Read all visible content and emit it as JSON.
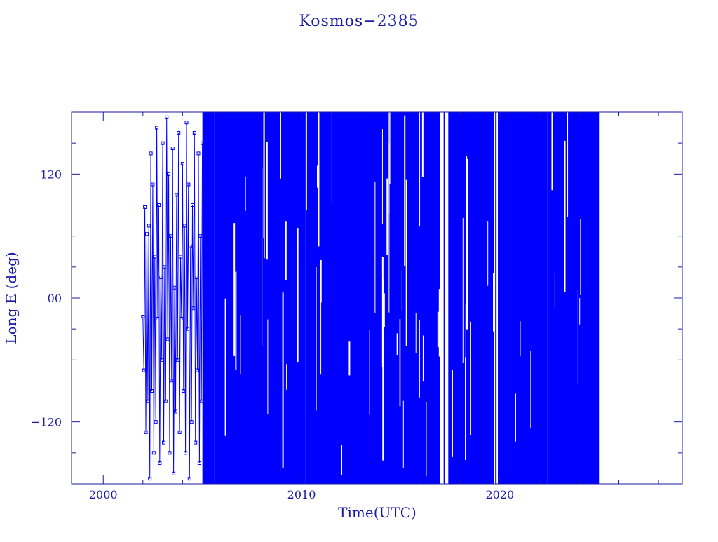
{
  "chart_data": {
    "type": "line",
    "title": "Kosmos−2385",
    "xlabel": "Time(UTC)",
    "ylabel": "Long E (deg)",
    "xlim": [
      1998.4,
      2029.2
    ],
    "ylim": [
      -180,
      180
    ],
    "x_ticks": [
      {
        "value": 2000,
        "label": "2000"
      },
      {
        "value": 2010,
        "label": "2010"
      },
      {
        "value": 2020,
        "label": "2020"
      }
    ],
    "y_ticks": [
      {
        "value": -120,
        "label": "−120"
      },
      {
        "value": 0,
        "label": "00"
      },
      {
        "value": 120,
        "label": "120"
      }
    ],
    "x_minor_step": 2,
    "y_minor_step": 30,
    "grid": false,
    "color": "#0000ff",
    "axis_color": "#1a1aa6",
    "early_series": {
      "name": "",
      "marker": "square",
      "x": [
        2002.0,
        2002.05,
        2002.1,
        2002.15,
        2002.2,
        2002.25,
        2002.3,
        2002.35,
        2002.4,
        2002.45,
        2002.5,
        2002.55,
        2002.6,
        2002.65,
        2002.7,
        2002.75,
        2002.8,
        2002.85,
        2002.9,
        2002.95,
        2003.0,
        2003.05,
        2003.1,
        2003.15,
        2003.2,
        2003.25,
        2003.3,
        2003.35,
        2003.4,
        2003.45,
        2003.5,
        2003.55,
        2003.6,
        2003.65,
        2003.7,
        2003.75,
        2003.8,
        2003.85,
        2003.9,
        2003.95,
        2004.0,
        2004.05,
        2004.1,
        2004.15,
        2004.2,
        2004.25,
        2004.3,
        2004.35,
        2004.4,
        2004.45,
        2004.5,
        2004.55,
        2004.6,
        2004.65,
        2004.7,
        2004.75,
        2004.8,
        2004.85,
        2004.9,
        2004.95,
        2005.0
      ],
      "y": [
        -18,
        -70,
        88,
        -130,
        62,
        -100,
        70,
        -175,
        140,
        -90,
        110,
        -150,
        40,
        -120,
        165,
        -20,
        90,
        -160,
        20,
        -60,
        150,
        -140,
        30,
        -100,
        175,
        -40,
        120,
        -150,
        60,
        -80,
        145,
        -170,
        10,
        -110,
        100,
        -60,
        160,
        -130,
        40,
        -20,
        130,
        -90,
        70,
        -150,
        170,
        -30,
        110,
        -175,
        50,
        -120,
        90,
        -10,
        160,
        -140,
        20,
        -70,
        140,
        -160,
        60,
        -100,
        150
      ]
    },
    "dense_series": {
      "name": "",
      "x_start": 2005.0,
      "x_end": 2025.0,
      "y_range": [
        -180,
        180
      ]
    },
    "dense_bands": [
      {
        "x0": 2005.0,
        "x1": 2005.6,
        "ymin": -180,
        "ymax": 180
      },
      {
        "x0": 2005.6,
        "x1": 2010.2,
        "ymin": -180,
        "ymax": 180
      },
      {
        "x0": 2010.2,
        "x1": 2017.0,
        "ymin": -180,
        "ymax": 180
      },
      {
        "x0": 2017.4,
        "x1": 2019.7,
        "ymin": -180,
        "ymax": 180
      },
      {
        "x0": 2019.9,
        "x1": 2022.4,
        "ymin": -180,
        "ymax": 180
      },
      {
        "x0": 2022.4,
        "x1": 2023.1,
        "ymin": -180,
        "ymax": 180
      },
      {
        "x0": 2023.1,
        "x1": 2025.0,
        "ymin": -180,
        "ymax": 180
      }
    ],
    "gap_traces": [
      {
        "x": 2005.7,
        "ymin": -180,
        "ymax": 180
      },
      {
        "x": 2008.8,
        "ymin": -140,
        "ymax": 180
      },
      {
        "x": 2009.3,
        "ymin": -180,
        "ymax": 140
      },
      {
        "x": 2014.9,
        "ymin": -180,
        "ymax": 180
      },
      {
        "x": 2017.2,
        "ymin": -180,
        "ymax": 180
      },
      {
        "x": 2019.8,
        "ymin": -180,
        "ymax": 180
      },
      {
        "x": 2021.3,
        "ymin": -120,
        "ymax": 95
      },
      {
        "x": 2022.1,
        "ymin": -170,
        "ymax": 50
      }
    ]
  }
}
